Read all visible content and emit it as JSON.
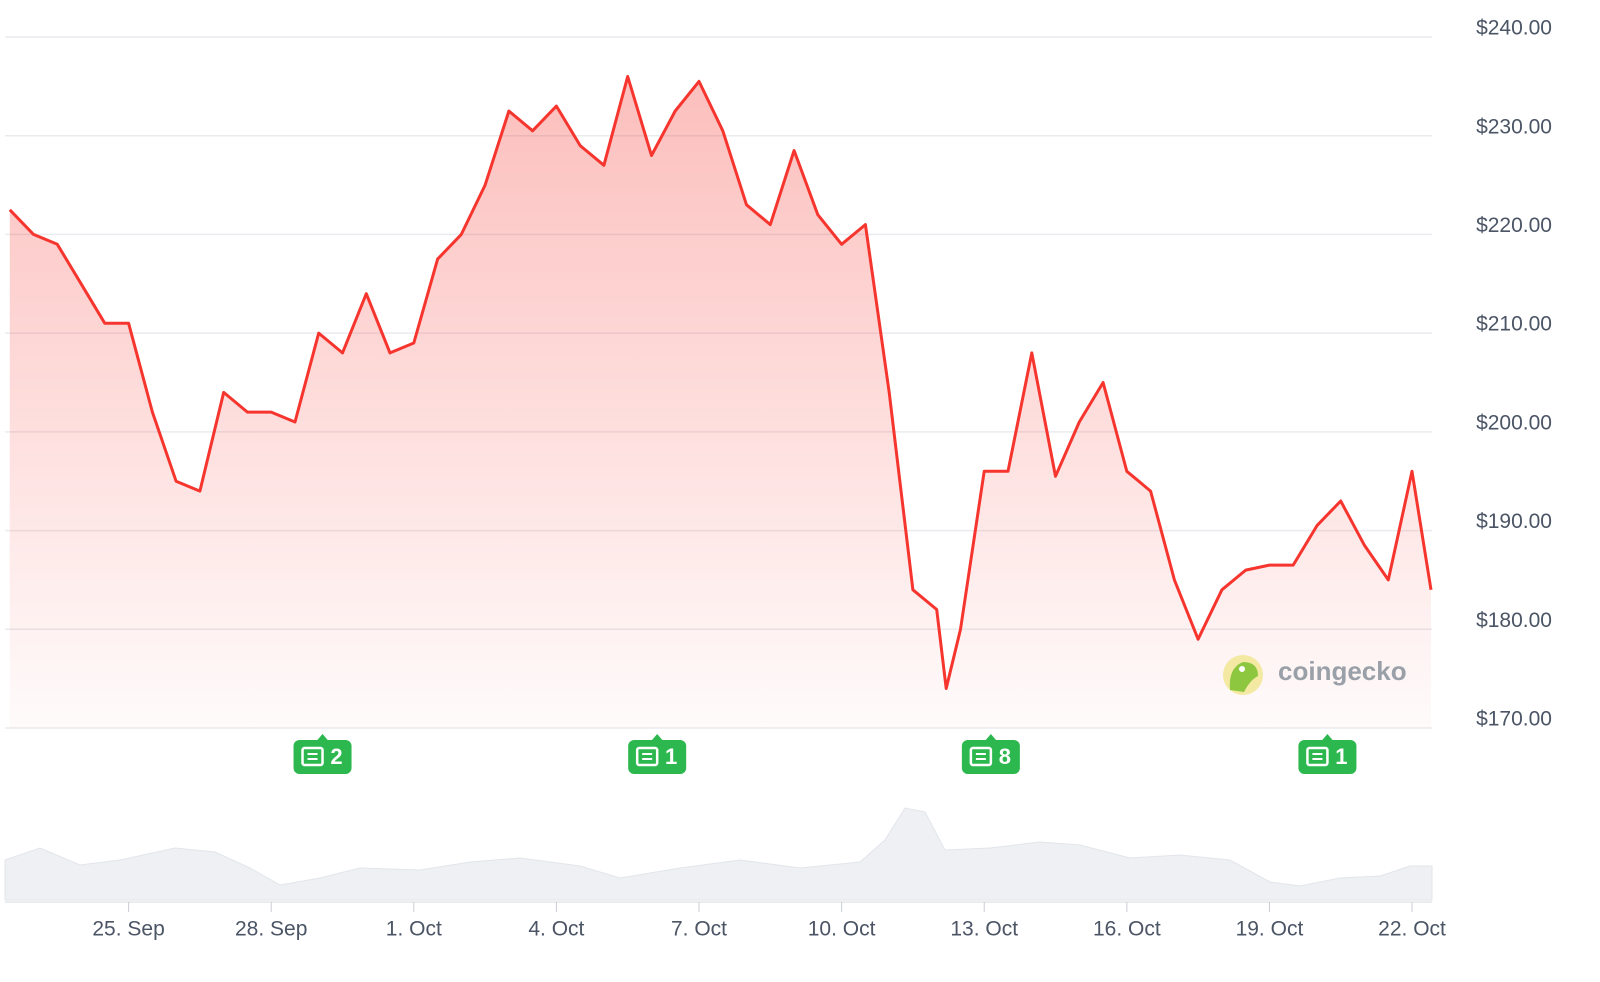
{
  "chart_data": {
    "type": "line",
    "x": [
      22.5,
      23,
      23.5,
      24,
      24.5,
      25,
      25.5,
      26,
      26.5,
      27,
      27.5,
      28,
      28.5,
      29,
      29.5,
      30,
      30.5,
      31,
      31.5,
      32,
      32.5,
      33,
      33.5,
      34,
      34.5,
      35,
      35.5,
      36,
      36.5,
      37,
      37.5,
      38,
      38.5,
      39,
      39.5,
      40,
      40.5,
      41,
      41.5,
      42,
      42.2,
      42.5,
      43,
      43.5,
      44,
      44.5,
      45,
      45.5,
      46,
      46.5,
      47,
      47.5,
      48,
      48.5,
      49,
      49.5,
      50,
      50.5,
      51,
      51.5,
      52,
      52.4
    ],
    "values": [
      222.5,
      220,
      219,
      215,
      211,
      211,
      202,
      195,
      194,
      204,
      202,
      202,
      201,
      210,
      208,
      214,
      208,
      209,
      217.5,
      220,
      225,
      232.5,
      230.5,
      233,
      229,
      227,
      236,
      228,
      232.5,
      235.5,
      230.5,
      223,
      221,
      228.5,
      222,
      219,
      221,
      204,
      184,
      182,
      174,
      180,
      196,
      196,
      208,
      195.5,
      201,
      205,
      196,
      194,
      185,
      179,
      184,
      186,
      186.5,
      186.5,
      190.5,
      193,
      188.5,
      185,
      196,
      184
    ],
    "color": "#f5352e",
    "xlim": [
      22.4,
      52.42
    ],
    "xticks": [
      {
        "value": 25,
        "label": "25. Sep"
      },
      {
        "value": 28,
        "label": "28. Sep"
      },
      {
        "value": 31,
        "label": "1. Oct"
      },
      {
        "value": 34,
        "label": "4. Oct"
      },
      {
        "value": 37,
        "label": "7. Oct"
      },
      {
        "value": 40,
        "label": "10. Oct"
      },
      {
        "value": 43,
        "label": "13. Oct"
      },
      {
        "value": 46,
        "label": "16. Oct"
      },
      {
        "value": 49,
        "label": "19. Oct"
      },
      {
        "value": 52,
        "label": "22. Oct"
      }
    ],
    "ylim": [
      170,
      240
    ],
    "yticks": [
      {
        "value": 170,
        "label": "$170.00"
      },
      {
        "value": 180,
        "label": "$180.00"
      },
      {
        "value": 190,
        "label": "$190.00"
      },
      {
        "value": 200,
        "label": "$200.00"
      },
      {
        "value": 210,
        "label": "$210.00"
      },
      {
        "value": 220,
        "label": "$220.00"
      },
      {
        "value": 230,
        "label": "$230.00"
      },
      {
        "value": 240,
        "label": "$240.00"
      }
    ],
    "grid": true,
    "annotations": [
      {
        "x": 29.08,
        "text": "2"
      },
      {
        "x": 36.12,
        "text": "1"
      },
      {
        "x": 43.14,
        "text": "8"
      },
      {
        "x": 50.22,
        "text": "1"
      }
    ],
    "watermark": "coingecko"
  }
}
